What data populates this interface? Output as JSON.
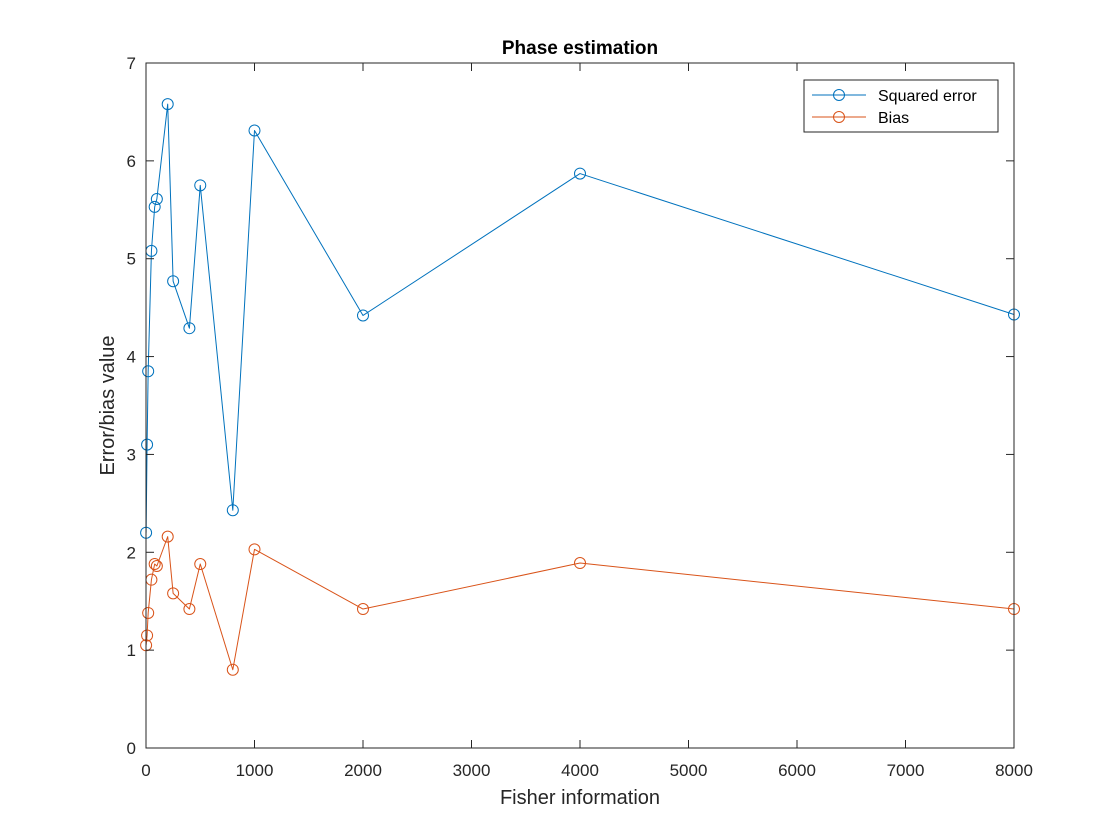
{
  "chart_data": {
    "type": "line",
    "title": "Phase estimation",
    "xlabel": "Fisher information",
    "ylabel": "Error/bias value",
    "xlim": [
      0,
      8000
    ],
    "ylim": [
      0,
      7
    ],
    "xticks": [
      0,
      1000,
      2000,
      3000,
      4000,
      5000,
      6000,
      7000,
      8000
    ],
    "yticks": [
      0,
      1,
      2,
      3,
      4,
      5,
      6,
      7
    ],
    "grid": false,
    "legend_position": "top-right",
    "marker": "circle",
    "x": [
      1,
      10,
      20,
      50,
      80,
      100,
      200,
      250,
      400,
      500,
      800,
      1000,
      2000,
      4000,
      8000
    ],
    "series": [
      {
        "name": "Squared error",
        "color": "#0072BD",
        "values": [
          2.2,
          3.1,
          3.85,
          5.08,
          5.53,
          5.61,
          6.58,
          4.77,
          4.29,
          5.75,
          2.43,
          6.31,
          4.42,
          5.87,
          4.43
        ]
      },
      {
        "name": "Bias",
        "color": "#D95319",
        "values": [
          1.05,
          1.15,
          1.38,
          1.72,
          1.88,
          1.86,
          2.16,
          1.58,
          1.42,
          1.88,
          0.8,
          2.03,
          1.42,
          1.89,
          1.42
        ]
      }
    ]
  }
}
